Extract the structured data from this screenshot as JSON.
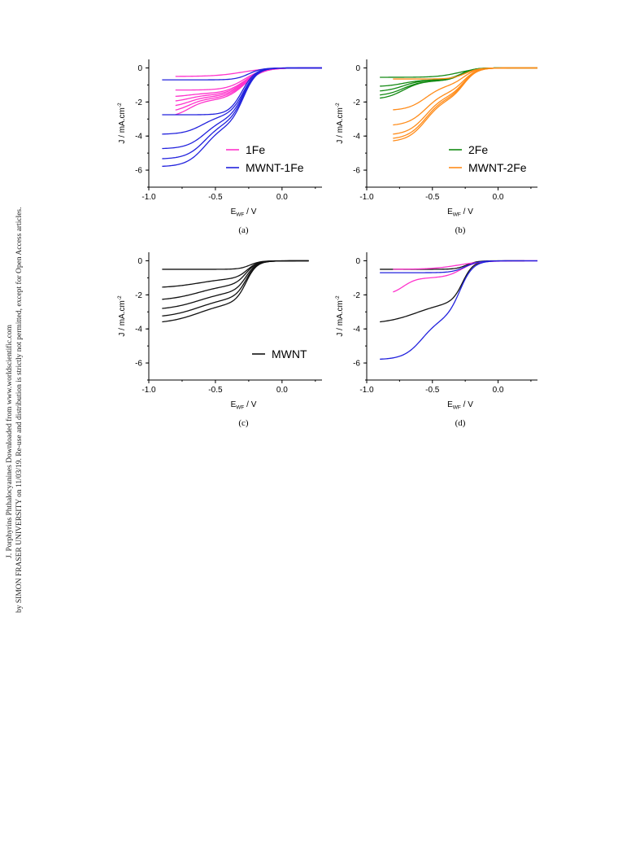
{
  "watermark": {
    "line1": "J. Porphyrins Phthalocyanines Downloaded from www.worldscientific.com",
    "line2": "by SIMON FRASER UNIVERSITY on 11/03/19. Re-use and distribution is strictly not permitted, except for Open Access articles."
  },
  "chart_data": [
    {
      "type": "line",
      "panel_label": "(a)",
      "xlabel_main": "E",
      "xlabel_sub": "WF",
      "xlabel_unit": " / V",
      "ylabel": "J / mA.cm",
      "ylabel_sup": "-2",
      "xlim": [
        -1.0,
        0.3
      ],
      "ylim": [
        -7,
        0.5
      ],
      "xticks": [
        -1.0,
        -0.5,
        0.0
      ],
      "xtick_labels": [
        "-1.0",
        "-0.5",
        "0.0"
      ],
      "yticks": [
        0,
        -2,
        -4,
        -6
      ],
      "ytick_labels": [
        "0",
        "-2",
        "-4",
        "-6"
      ],
      "legend": [
        {
          "label": "1Fe",
          "color": "#ff33cc"
        },
        {
          "label": "MWNT-1Fe",
          "color": "#2222dd"
        }
      ],
      "series": [
        {
          "group": "1Fe",
          "color": "#ff33cc",
          "xmin": -0.8,
          "xmax": 0.3,
          "jlim": -1.3,
          "e12": -0.28,
          "w": 0.07,
          "a2": 0,
          "e2": -0.5,
          "w2": 0.05
        },
        {
          "group": "1Fe",
          "color": "#ff33cc",
          "xmin": -0.8,
          "xmax": 0.3,
          "jlim": -1.5,
          "e12": -0.28,
          "w": 0.07,
          "a2": 0.2,
          "e2": -0.7,
          "w2": 0.06
        },
        {
          "group": "1Fe",
          "color": "#ff33cc",
          "xmin": -0.8,
          "xmax": 0.3,
          "jlim": -1.6,
          "e12": -0.28,
          "w": 0.07,
          "a2": 0.4,
          "e2": -0.7,
          "w2": 0.06
        },
        {
          "group": "1Fe",
          "color": "#ff33cc",
          "xmin": -0.8,
          "xmax": 0.3,
          "jlim": -1.7,
          "e12": -0.28,
          "w": 0.07,
          "a2": 0.6,
          "e2": -0.7,
          "w2": 0.06
        },
        {
          "group": "1Fe",
          "color": "#ff33cc",
          "xmin": -0.8,
          "xmax": 0.3,
          "jlim": -1.8,
          "e12": -0.28,
          "w": 0.07,
          "a2": 0.8,
          "e2": -0.7,
          "w2": 0.06
        },
        {
          "group": "1Fe",
          "color": "#ff33cc",
          "xmin": -0.8,
          "xmax": 0.3,
          "jlim": -1.9,
          "e12": -0.28,
          "w": 0.07,
          "a2": 1.0,
          "e2": -0.7,
          "w2": 0.06
        },
        {
          "group": "1Fe",
          "color": "#ff33cc",
          "xmin": -0.8,
          "xmax": 0.3,
          "jlim": -0.5,
          "e12": -0.3,
          "w": 0.1,
          "a2": 0,
          "e2": -0.5,
          "w2": 0.05
        },
        {
          "group": "MWNT-1Fe",
          "color": "#2222dd",
          "xmin": -0.9,
          "xmax": 0.3,
          "jlim": -0.7,
          "e12": -0.25,
          "w": 0.05,
          "a2": 0,
          "e2": -0.5,
          "w2": 0.05
        },
        {
          "group": "MWNT-1Fe",
          "color": "#2222dd",
          "xmin": -0.9,
          "xmax": 0.3,
          "jlim": -2.75,
          "e12": -0.3,
          "w": 0.05,
          "a2": 0,
          "e2": -0.5,
          "w2": 0.05
        },
        {
          "group": "MWNT-1Fe",
          "color": "#2222dd",
          "xmin": -0.9,
          "xmax": 0.3,
          "jlim": -2.8,
          "e12": -0.29,
          "w": 0.05,
          "a2": 1.1,
          "e2": -0.6,
          "w2": 0.07
        },
        {
          "group": "MWNT-1Fe",
          "color": "#2222dd",
          "xmin": -0.9,
          "xmax": 0.3,
          "jlim": -3.0,
          "e12": -0.29,
          "w": 0.05,
          "a2": 1.75,
          "e2": -0.58,
          "w2": 0.07
        },
        {
          "group": "MWNT-1Fe",
          "color": "#2222dd",
          "xmin": -0.9,
          "xmax": 0.3,
          "jlim": -3.2,
          "e12": -0.29,
          "w": 0.05,
          "a2": 2.15,
          "e2": -0.58,
          "w2": 0.07
        },
        {
          "group": "MWNT-1Fe",
          "color": "#2222dd",
          "xmin": -0.9,
          "xmax": 0.3,
          "jlim": -3.4,
          "e12": -0.29,
          "w": 0.05,
          "a2": 2.4,
          "e2": -0.58,
          "w2": 0.07
        }
      ]
    },
    {
      "type": "line",
      "panel_label": "(b)",
      "xlabel_main": "E",
      "xlabel_sub": "WF",
      "xlabel_unit": " / V",
      "ylabel": "J / mA.cm",
      "ylabel_sup": "-2",
      "xlim": [
        -1.0,
        0.3
      ],
      "ylim": [
        -7,
        0.5
      ],
      "xticks": [
        -1.0,
        -0.5,
        0.0
      ],
      "xtick_labels": [
        "-1.0",
        "-0.5",
        "0.0"
      ],
      "yticks": [
        0,
        -2,
        -4,
        -6
      ],
      "ytick_labels": [
        "0",
        "-2",
        "-4",
        "-6"
      ],
      "legend": [
        {
          "label": "2Fe",
          "color": "#138a13"
        },
        {
          "label": "MWNT-2Fe",
          "color": "#ff8c1a"
        }
      ],
      "series": [
        {
          "group": "2Fe",
          "color": "#138a13",
          "xmin": -0.9,
          "xmax": 0.3,
          "jlim": -0.55,
          "e12": -0.3,
          "w": 0.08,
          "a2": 0,
          "e2": -0.5,
          "w2": 0.05
        },
        {
          "group": "2Fe",
          "color": "#138a13",
          "xmin": -0.9,
          "xmax": 0.3,
          "jlim": -0.7,
          "e12": -0.28,
          "w": 0.05,
          "a2": 0.4,
          "e2": -0.72,
          "w2": 0.07
        },
        {
          "group": "2Fe",
          "color": "#138a13",
          "xmin": -0.9,
          "xmax": 0.3,
          "jlim": -0.7,
          "e12": -0.28,
          "w": 0.05,
          "a2": 0.7,
          "e2": -0.72,
          "w2": 0.07
        },
        {
          "group": "2Fe",
          "color": "#138a13",
          "xmin": -0.9,
          "xmax": 0.3,
          "jlim": -0.75,
          "e12": -0.28,
          "w": 0.05,
          "a2": 0.9,
          "e2": -0.72,
          "w2": 0.07
        },
        {
          "group": "2Fe",
          "color": "#138a13",
          "xmin": -0.9,
          "xmax": 0.3,
          "jlim": -0.75,
          "e12": -0.28,
          "w": 0.05,
          "a2": 1.1,
          "e2": -0.72,
          "w2": 0.07
        },
        {
          "group": "MWNT-2Fe",
          "color": "#ff8c1a",
          "xmin": -0.8,
          "xmax": 0.3,
          "jlim": -0.65,
          "e12": -0.25,
          "w": 0.05,
          "a2": 0,
          "e2": -0.5,
          "w2": 0.05
        },
        {
          "group": "MWNT-2Fe",
          "color": "#ff8c1a",
          "xmin": -0.8,
          "xmax": 0.3,
          "jlim": -1.0,
          "e12": -0.26,
          "w": 0.05,
          "a2": 1.5,
          "e2": -0.55,
          "w2": 0.07
        },
        {
          "group": "MWNT-2Fe",
          "color": "#ff8c1a",
          "xmin": -0.8,
          "xmax": 0.3,
          "jlim": -1.4,
          "e12": -0.26,
          "w": 0.05,
          "a2": 2.0,
          "e2": -0.55,
          "w2": 0.07
        },
        {
          "group": "MWNT-2Fe",
          "color": "#ff8c1a",
          "xmin": -0.8,
          "xmax": 0.3,
          "jlim": -1.6,
          "e12": -0.26,
          "w": 0.05,
          "a2": 2.35,
          "e2": -0.55,
          "w2": 0.07
        },
        {
          "group": "MWNT-2Fe",
          "color": "#ff8c1a",
          "xmin": -0.8,
          "xmax": 0.3,
          "jlim": -1.7,
          "e12": -0.26,
          "w": 0.05,
          "a2": 2.5,
          "e2": -0.55,
          "w2": 0.07
        },
        {
          "group": "MWNT-2Fe",
          "color": "#ff8c1a",
          "xmin": -0.8,
          "xmax": 0.3,
          "jlim": -1.8,
          "e12": -0.26,
          "w": 0.05,
          "a2": 2.55,
          "e2": -0.55,
          "w2": 0.07
        }
      ]
    },
    {
      "type": "line",
      "panel_label": "(c)",
      "xlabel_main": "E",
      "xlabel_sub": "WF",
      "xlabel_unit": " / V",
      "ylabel": "J / mA.cm",
      "ylabel_sup": "-2",
      "xlim": [
        -1.0,
        0.3
      ],
      "ylim": [
        -7,
        0.5
      ],
      "xticks": [
        -1.0,
        -0.5,
        0.0
      ],
      "xtick_labels": [
        "-1.0",
        "-0.5",
        "0.0"
      ],
      "yticks": [
        0,
        -2,
        -4,
        -6
      ],
      "ytick_labels": [
        "0",
        "-2",
        "-4",
        "-6"
      ],
      "legend": [
        {
          "label": "MWNT",
          "color": "#111111"
        }
      ],
      "series": [
        {
          "group": "MWNT",
          "color": "#111111",
          "xmin": -0.9,
          "xmax": 0.2,
          "jlim": -0.5,
          "e12": -0.24,
          "w": 0.04,
          "a2": 0,
          "e2": -0.5,
          "w2": 0.05
        },
        {
          "group": "MWNT",
          "color": "#111111",
          "xmin": -0.9,
          "xmax": 0.2,
          "jlim": -1.0,
          "e12": -0.26,
          "w": 0.04,
          "a2": 0.6,
          "e2": -0.62,
          "w2": 0.12
        },
        {
          "group": "MWNT",
          "color": "#111111",
          "xmin": -0.9,
          "xmax": 0.2,
          "jlim": -1.35,
          "e12": -0.27,
          "w": 0.04,
          "a2": 1.0,
          "e2": -0.62,
          "w2": 0.12
        },
        {
          "group": "MWNT",
          "color": "#111111",
          "xmin": -0.9,
          "xmax": 0.2,
          "jlim": -1.75,
          "e12": -0.27,
          "w": 0.04,
          "a2": 1.15,
          "e2": -0.62,
          "w2": 0.12
        },
        {
          "group": "MWNT",
          "color": "#111111",
          "xmin": -0.9,
          "xmax": 0.2,
          "jlim": -2.1,
          "e12": -0.27,
          "w": 0.04,
          "a2": 1.25,
          "e2": -0.62,
          "w2": 0.12
        },
        {
          "group": "MWNT",
          "color": "#111111",
          "xmin": -0.9,
          "xmax": 0.2,
          "jlim": -2.4,
          "e12": -0.27,
          "w": 0.04,
          "a2": 1.3,
          "e2": -0.62,
          "w2": 0.12
        }
      ]
    },
    {
      "type": "line",
      "panel_label": "(d)",
      "xlabel_main": "E",
      "xlabel_sub": "WF",
      "xlabel_unit": " / V",
      "ylabel": "J / mA.cm",
      "ylabel_sup": "-2",
      "xlim": [
        -1.0,
        0.3
      ],
      "ylim": [
        -7,
        0.5
      ],
      "xticks": [
        -1.0,
        -0.5,
        0.0
      ],
      "xtick_labels": [
        "-1.0",
        "-0.5",
        "0.0"
      ],
      "yticks": [
        0,
        -2,
        -4,
        -6
      ],
      "ytick_labels": [
        "0",
        "-2",
        "-4",
        "-6"
      ],
      "legend": [],
      "series": [
        {
          "group": "MWNT",
          "color": "#111111",
          "xmin": -0.9,
          "xmax": 0.2,
          "jlim": -0.5,
          "e12": -0.24,
          "w": 0.04,
          "a2": 0,
          "e2": -0.5,
          "w2": 0.05
        },
        {
          "group": "MWNT",
          "color": "#111111",
          "xmin": -0.9,
          "xmax": 0.2,
          "jlim": -2.4,
          "e12": -0.27,
          "w": 0.04,
          "a2": 1.3,
          "e2": -0.62,
          "w2": 0.12
        },
        {
          "group": "1Fe",
          "color": "#ff33cc",
          "xmin": -0.8,
          "xmax": 0.3,
          "jlim": -0.5,
          "e12": -0.3,
          "w": 0.1,
          "a2": 0,
          "e2": -0.5,
          "w2": 0.05
        },
        {
          "group": "1Fe",
          "color": "#ff33cc",
          "xmin": -0.8,
          "xmax": 0.3,
          "jlim": -1.0,
          "e12": -0.28,
          "w": 0.06,
          "a2": 1.0,
          "e2": -0.72,
          "w2": 0.05
        },
        {
          "group": "MWNT-1Fe",
          "color": "#2222dd",
          "xmin": -0.9,
          "xmax": 0.3,
          "jlim": -0.7,
          "e12": -0.25,
          "w": 0.05,
          "a2": 0,
          "e2": -0.5,
          "w2": 0.05
        },
        {
          "group": "MWNT-1Fe",
          "color": "#2222dd",
          "xmin": -0.9,
          "xmax": 0.3,
          "jlim": -3.4,
          "e12": -0.29,
          "w": 0.05,
          "a2": 2.4,
          "e2": -0.58,
          "w2": 0.07
        }
      ]
    }
  ]
}
